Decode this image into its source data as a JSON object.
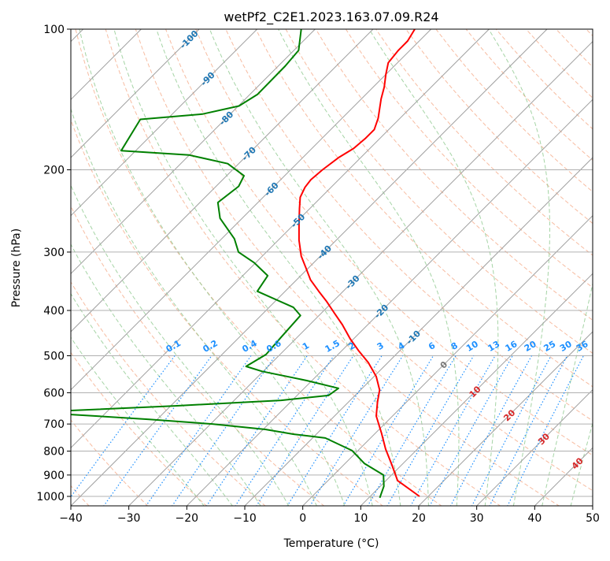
{
  "chart_data": {
    "type": "line",
    "subtype": "skew-t log-p",
    "title": "wetPf2_C2E1.2023.163.07.09.R24",
    "xlabel": "Temperature (°C)",
    "ylabel": "Pressure (hPa)",
    "xlim": [
      -40,
      50
    ],
    "ylim": [
      1050,
      100
    ],
    "x_ticks": [
      "−40",
      "−30",
      "−20",
      "−10",
      "0",
      "10",
      "20",
      "30",
      "40",
      "50"
    ],
    "x_tick_values": [
      -40,
      -30,
      -20,
      -10,
      0,
      10,
      20,
      30,
      40,
      50
    ],
    "y_ticks": [
      "100",
      "200",
      "300",
      "400",
      "500",
      "600",
      "700",
      "800",
      "900",
      "1000"
    ],
    "y_tick_values": [
      100,
      200,
      300,
      400,
      500,
      600,
      700,
      800,
      900,
      1000
    ],
    "grid": true,
    "series": [
      {
        "name": "temperature",
        "color": "#ff0000",
        "pressure": [
          1000,
          925,
          856,
          792,
          733,
          673,
          628,
          592,
          554,
          517,
          487,
          460,
          429,
          405,
          382,
          364,
          344,
          324,
          306,
          283,
          262,
          242,
          229,
          218,
          210,
          200,
          188,
          180,
          171,
          164,
          155,
          141,
          133,
          125,
          118,
          111,
          106,
          100
        ],
        "values": [
          18.5,
          12.0,
          8.3,
          4.5,
          1.1,
          -2.8,
          -5.0,
          -6.7,
          -9.6,
          -13.4,
          -17.2,
          -20.6,
          -24.4,
          -27.8,
          -31.2,
          -34.2,
          -37.6,
          -40.5,
          -43.3,
          -46.4,
          -49.1,
          -51.8,
          -53.6,
          -54.5,
          -54.8,
          -54.5,
          -53.8,
          -52.8,
          -52.5,
          -52.5,
          -53.8,
          -56.6,
          -58.1,
          -60.0,
          -61.6,
          -62.0,
          -62.0,
          -62.8
        ]
      },
      {
        "name": "dewpoint",
        "color": "#008000",
        "pressure": [
          1007,
          951,
          900,
          850,
          798,
          750,
          736,
          719,
          700,
          684,
          668,
          660,
          655,
          640,
          623,
          608,
          587,
          565,
          540,
          527,
          497,
          456,
          410,
          394,
          364,
          337,
          316,
          300,
          281,
          254,
          235,
          217,
          206,
          194,
          186,
          182,
          156,
          152,
          146,
          138,
          120,
          111,
          100
        ],
        "values": [
          11.9,
          10.6,
          8.6,
          3.3,
          -1.0,
          -7.8,
          -13.9,
          -19.6,
          -29.7,
          -41.4,
          -55.7,
          -64.3,
          -56.4,
          -39.2,
          -21.9,
          -14.6,
          -14.1,
          -20.9,
          -30.2,
          -33.8,
          -32.4,
          -32.8,
          -33.2,
          -35.8,
          -44.8,
          -45.7,
          -50.3,
          -54.8,
          -57.8,
          -63.8,
          -66.9,
          -66.1,
          -67.0,
          -71.9,
          -80.0,
          -92.5,
          -94.6,
          -84.8,
          -79.9,
          -78.7,
          -78.8,
          -79.2,
          -82.4
        ]
      }
    ],
    "isotherm_labels": [
      {
        "value": -100,
        "text": "-100"
      },
      {
        "value": -90,
        "text": "-90"
      },
      {
        "value": -80,
        "text": "-80"
      },
      {
        "value": -70,
        "text": "-70"
      },
      {
        "value": -60,
        "text": "-60"
      },
      {
        "value": -50,
        "text": "-50"
      },
      {
        "value": -40,
        "text": "-40"
      },
      {
        "value": -30,
        "text": "-30"
      },
      {
        "value": -20,
        "text": "-20"
      },
      {
        "value": -10,
        "text": "-10"
      },
      {
        "value": 0,
        "text": "0"
      },
      {
        "value": 10,
        "text": "10"
      },
      {
        "value": 20,
        "text": "20"
      },
      {
        "value": 30,
        "text": "30"
      },
      {
        "value": 40,
        "text": "40"
      }
    ],
    "mixing_ratio_lines_gkg": [
      0.1,
      0.2,
      0.4,
      0.6,
      1,
      1.5,
      2,
      3,
      4,
      6,
      8,
      10,
      13,
      16,
      20,
      25,
      30,
      36
    ],
    "mixing_ratio_labels": [
      "0.1",
      "0.2",
      "0.4",
      "0.6",
      "1",
      "1.5",
      "2",
      "3",
      "4",
      "6",
      "8",
      "10",
      "13",
      "16",
      "20",
      "25",
      "30",
      "36"
    ],
    "colors": {
      "temperature": "#ff0000",
      "dewpoint": "#008000",
      "isotherm": "#a0a0a0",
      "dry_adiabat": "#f4a582",
      "moist_adiabat": "#8fc98f",
      "mixing_ratio": "#1e90ff",
      "label_negative": "#1f77b4",
      "label_zero": "#777777",
      "label_positive": "#d62728"
    }
  }
}
